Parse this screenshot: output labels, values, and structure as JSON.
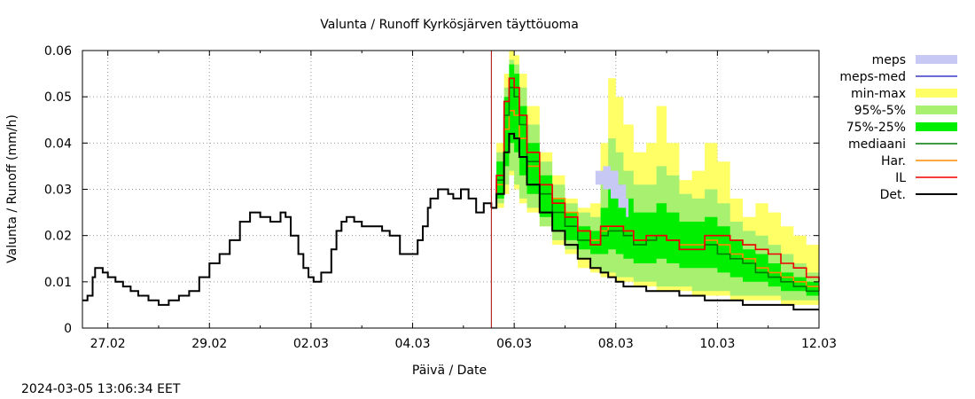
{
  "chart_data": {
    "type": "area",
    "title": "Valunta / Runoff  Kyrkösjärven täyttöuoma",
    "xlabel": "Päivä / Date",
    "ylabel": "Valunta / Runoff (mm/h)",
    "timestamp": "2024-03-05 13:06:34 EET",
    "x_unit": "days since 2024-02-26 00:00",
    "xlim": [
      0.5,
      15.0
    ],
    "ylim": [
      0,
      0.06
    ],
    "yticks": [
      0,
      0.01,
      0.02,
      0.03,
      0.04,
      0.05,
      0.06
    ],
    "ytick_labels": [
      "0",
      "0.01",
      "0.02",
      "0.03",
      "0.04",
      "0.05",
      "0.06"
    ],
    "xticks": [
      1,
      3,
      5,
      7,
      9,
      11,
      13,
      15
    ],
    "xtick_labels": [
      "27.02",
      "29.02",
      "02.03",
      "04.03",
      "06.03",
      "08.03",
      "10.03",
      "12.03"
    ],
    "grid": true,
    "legend_position": "right",
    "forecast_start": 8.55,
    "colors": {
      "meps": "#c8c8f4",
      "meps_med": "#3a3ac8",
      "minmax": "#ffff66",
      "p95_5": "#a8f070",
      "p75_25": "#00ee00",
      "mediaani": "#007a00",
      "har": "#ff8c00",
      "il": "#ee0000",
      "det": "#000000",
      "forecast_line": "#aa0000"
    },
    "legend": [
      {
        "key": "meps",
        "label": "meps",
        "kind": "band"
      },
      {
        "key": "meps_med",
        "label": "meps-med",
        "kind": "line"
      },
      {
        "key": "minmax",
        "label": "min-max",
        "kind": "band"
      },
      {
        "key": "p95_5",
        "label": "95%-5%",
        "kind": "band"
      },
      {
        "key": "p75_25",
        "label": "75%-25%",
        "kind": "band"
      },
      {
        "key": "mediaani",
        "label": "mediaani",
        "kind": "line"
      },
      {
        "key": "har",
        "label": "Har.",
        "kind": "line"
      },
      {
        "key": "il",
        "label": "IL",
        "kind": "line"
      },
      {
        "key": "det",
        "label": "Det.",
        "kind": "line"
      }
    ],
    "observed": {
      "x": [
        0.5,
        0.6,
        0.7,
        0.75,
        0.8,
        0.9,
        1.0,
        1.15,
        1.3,
        1.45,
        1.6,
        1.8,
        2.0,
        2.2,
        2.4,
        2.6,
        2.8,
        3.0,
        3.2,
        3.4,
        3.6,
        3.8,
        4.0,
        4.2,
        4.4,
        4.5,
        4.6,
        4.75,
        4.85,
        4.95,
        5.05,
        5.2,
        5.4,
        5.5,
        5.6,
        5.7,
        5.85,
        6.0,
        6.2,
        6.4,
        6.55,
        6.75,
        6.95,
        7.1,
        7.2,
        7.3,
        7.35,
        7.5,
        7.6,
        7.7,
        7.8,
        7.95,
        8.1,
        8.25,
        8.4,
        8.55
      ],
      "y": [
        0.006,
        0.007,
        0.011,
        0.013,
        0.013,
        0.012,
        0.011,
        0.01,
        0.009,
        0.008,
        0.007,
        0.006,
        0.005,
        0.006,
        0.007,
        0.008,
        0.011,
        0.014,
        0.016,
        0.019,
        0.023,
        0.025,
        0.024,
        0.023,
        0.025,
        0.024,
        0.02,
        0.016,
        0.013,
        0.011,
        0.01,
        0.012,
        0.017,
        0.021,
        0.023,
        0.024,
        0.023,
        0.022,
        0.022,
        0.021,
        0.02,
        0.016,
        0.016,
        0.019,
        0.022,
        0.026,
        0.028,
        0.03,
        0.03,
        0.029,
        0.028,
        0.03,
        0.028,
        0.025,
        0.027,
        0.026
      ]
    },
    "forecast_x": [
      8.55,
      8.65,
      8.8,
      8.9,
      9.0,
      9.1,
      9.25,
      9.5,
      9.75,
      10.0,
      10.25,
      10.5,
      10.7,
      10.85,
      11.0,
      11.15,
      11.35,
      11.6,
      11.8,
      12.0,
      12.25,
      12.5,
      12.75,
      13.0,
      13.25,
      13.5,
      13.75,
      14.0,
      14.25,
      14.5,
      14.75,
      15.0
    ],
    "series": [
      {
        "name": "min-max",
        "kind": "band",
        "key": "minmax",
        "low": [
          0.026,
          0.026,
          0.029,
          0.033,
          0.03,
          0.027,
          0.025,
          0.022,
          0.018,
          0.016,
          0.013,
          0.012,
          0.011,
          0.011,
          0.01,
          0.01,
          0.009,
          0.009,
          0.008,
          0.008,
          0.008,
          0.007,
          0.007,
          0.007,
          0.006,
          0.006,
          0.006,
          0.006,
          0.005,
          0.005,
          0.005,
          0.005
        ],
        "high": [
          0.026,
          0.04,
          0.055,
          0.06,
          0.059,
          0.055,
          0.048,
          0.038,
          0.033,
          0.028,
          0.026,
          0.027,
          0.04,
          0.054,
          0.05,
          0.044,
          0.038,
          0.04,
          0.048,
          0.04,
          0.032,
          0.034,
          0.04,
          0.036,
          0.028,
          0.024,
          0.027,
          0.025,
          0.022,
          0.02,
          0.018,
          0.015
        ]
      },
      {
        "name": "95%-5%",
        "kind": "band",
        "key": "p95_5",
        "low": [
          0.026,
          0.027,
          0.031,
          0.034,
          0.031,
          0.028,
          0.026,
          0.022,
          0.019,
          0.017,
          0.015,
          0.013,
          0.012,
          0.012,
          0.011,
          0.011,
          0.01,
          0.01,
          0.009,
          0.009,
          0.009,
          0.008,
          0.008,
          0.008,
          0.007,
          0.007,
          0.007,
          0.007,
          0.006,
          0.006,
          0.006,
          0.006
        ],
        "high": [
          0.026,
          0.038,
          0.052,
          0.058,
          0.057,
          0.052,
          0.044,
          0.036,
          0.031,
          0.027,
          0.025,
          0.024,
          0.032,
          0.041,
          0.038,
          0.034,
          0.031,
          0.031,
          0.035,
          0.033,
          0.029,
          0.028,
          0.03,
          0.027,
          0.023,
          0.021,
          0.02,
          0.018,
          0.016,
          0.014,
          0.012,
          0.011
        ]
      },
      {
        "name": "75%-25%",
        "kind": "band",
        "key": "p75_25",
        "low": [
          0.026,
          0.028,
          0.035,
          0.04,
          0.038,
          0.033,
          0.029,
          0.024,
          0.021,
          0.019,
          0.017,
          0.016,
          0.016,
          0.017,
          0.016,
          0.015,
          0.014,
          0.014,
          0.015,
          0.014,
          0.013,
          0.013,
          0.013,
          0.012,
          0.011,
          0.01,
          0.01,
          0.009,
          0.008,
          0.008,
          0.007,
          0.007
        ],
        "high": [
          0.026,
          0.036,
          0.05,
          0.057,
          0.055,
          0.048,
          0.04,
          0.033,
          0.028,
          0.025,
          0.022,
          0.021,
          0.026,
          0.032,
          0.031,
          0.028,
          0.025,
          0.025,
          0.027,
          0.025,
          0.023,
          0.023,
          0.024,
          0.022,
          0.019,
          0.017,
          0.016,
          0.014,
          0.012,
          0.011,
          0.01,
          0.009
        ]
      },
      {
        "name": "meps",
        "kind": "band",
        "key": "meps",
        "x": [
          10.6,
          10.75,
          10.9,
          11.05,
          11.2,
          11.25
        ],
        "low": [
          0.031,
          0.03,
          0.028,
          0.026,
          0.024,
          0.023
        ],
        "high": [
          0.034,
          0.035,
          0.034,
          0.031,
          0.028,
          0.026
        ]
      },
      {
        "name": "mediaani",
        "kind": "line",
        "key": "mediaani",
        "y": [
          0.026,
          0.032,
          0.046,
          0.052,
          0.05,
          0.044,
          0.036,
          0.029,
          0.025,
          0.022,
          0.019,
          0.018,
          0.02,
          0.021,
          0.021,
          0.02,
          0.018,
          0.019,
          0.02,
          0.019,
          0.017,
          0.017,
          0.018,
          0.016,
          0.015,
          0.014,
          0.012,
          0.011,
          0.01,
          0.009,
          0.008,
          0.008
        ]
      },
      {
        "name": "Har.",
        "kind": "line",
        "key": "har",
        "y": [
          0.026,
          0.031,
          0.043,
          0.047,
          0.046,
          0.041,
          0.035,
          0.031,
          0.028,
          0.025,
          0.021,
          0.019,
          0.021,
          0.022,
          0.022,
          0.021,
          0.019,
          0.019,
          0.02,
          0.019,
          0.018,
          0.018,
          0.019,
          0.018,
          0.016,
          0.015,
          0.013,
          0.012,
          0.011,
          0.01,
          0.009,
          0.008
        ]
      },
      {
        "name": "IL",
        "kind": "line",
        "key": "il",
        "y": [
          0.026,
          0.033,
          0.049,
          0.054,
          0.052,
          0.046,
          0.038,
          0.031,
          0.027,
          0.024,
          0.021,
          0.018,
          0.022,
          0.022,
          0.022,
          0.021,
          0.019,
          0.02,
          0.02,
          0.019,
          0.017,
          0.017,
          0.02,
          0.02,
          0.019,
          0.018,
          0.017,
          0.016,
          0.014,
          0.013,
          0.011,
          0.01
        ]
      },
      {
        "name": "Det.",
        "kind": "line",
        "key": "det",
        "y": [
          0.026,
          0.029,
          0.038,
          0.042,
          0.041,
          0.037,
          0.031,
          0.025,
          0.021,
          0.018,
          0.015,
          0.013,
          0.012,
          0.011,
          0.01,
          0.009,
          0.009,
          0.008,
          0.008,
          0.008,
          0.007,
          0.007,
          0.006,
          0.006,
          0.006,
          0.005,
          0.005,
          0.005,
          0.005,
          0.004,
          0.004,
          0.004
        ]
      }
    ]
  }
}
